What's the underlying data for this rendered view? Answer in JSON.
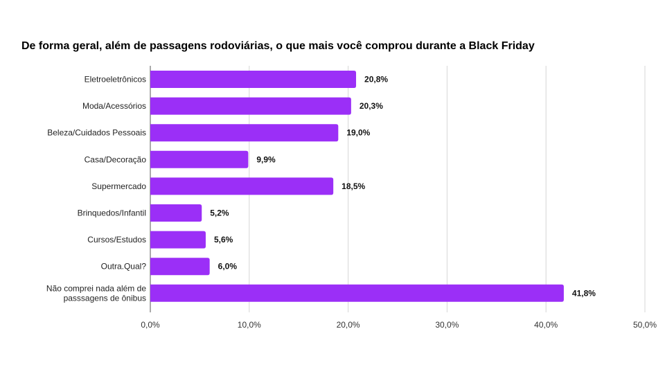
{
  "chart_data": {
    "type": "bar",
    "orientation": "horizontal",
    "title": "De forma geral, além de passagens rodoviárias, o que mais você comprou durante a Black Friday",
    "categories": [
      "Eletroeletrônicos",
      "Moda/Acessórios",
      "Beleza/Cuidados Pessoais",
      "Casa/Decoração",
      "Supermercado",
      "Brinquedos/Infantil",
      "Cursos/Estudos",
      "Outra.Qual?",
      "Não comprei nada além de passsagens de ônibus"
    ],
    "category_lines": [
      [
        "Eletroeletrônicos"
      ],
      [
        "Moda/Acessórios"
      ],
      [
        "Beleza/Cuidados Pessoais"
      ],
      [
        "Casa/Decoração"
      ],
      [
        "Supermercado"
      ],
      [
        "Brinquedos/Infantil"
      ],
      [
        "Cursos/Estudos"
      ],
      [
        "Outra.Qual?"
      ],
      [
        "Não comprei nada além de",
        "passsagens de ônibus"
      ]
    ],
    "values": [
      20.8,
      20.3,
      19.0,
      9.9,
      18.5,
      5.2,
      5.6,
      6.0,
      41.8
    ],
    "value_labels": [
      "20,8%",
      "20,3%",
      "19,0%",
      "9,9%",
      "18,5%",
      "5,2%",
      "5,6%",
      "6,0%",
      "41,8%"
    ],
    "xlim": [
      0,
      50
    ],
    "x_ticks": [
      0,
      10,
      20,
      30,
      40,
      50
    ],
    "x_tick_labels": [
      "0,0%",
      "10,0%",
      "20,0%",
      "30,0%",
      "40,0%",
      "50,0%"
    ],
    "xlabel": "",
    "ylabel": "",
    "grid": true,
    "legend": "none",
    "bar_color": "#9b2ff7",
    "grid_color": "#d6d6d6"
  }
}
